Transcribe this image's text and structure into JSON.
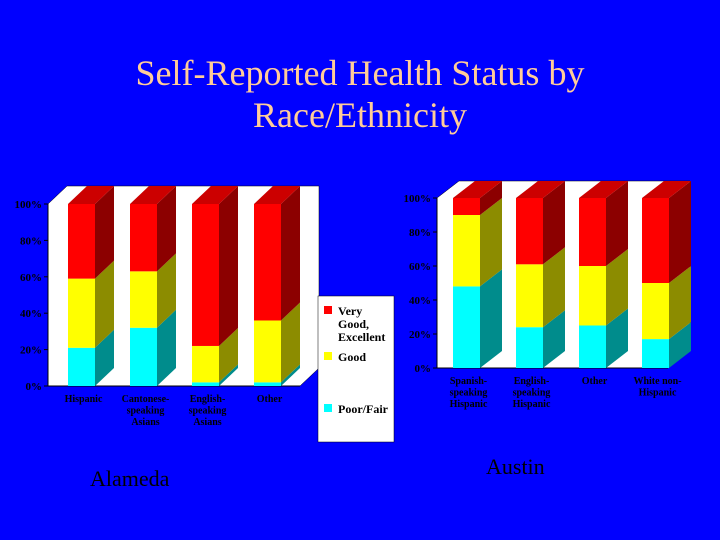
{
  "title_line1": "Self-Reported Health Status by",
  "title_line2": "Race/Ethnicity",
  "captions": {
    "left": "Alameda",
    "right": "Austin"
  },
  "colors": {
    "background": "#0000ff",
    "poor_fair": "#00ffff",
    "good": "#ffff00",
    "very_good_excellent": "#ff0000",
    "title": "#ffcc99",
    "plot_area": "#ffffff"
  },
  "chart_data": [
    {
      "type": "bar",
      "stacked": true,
      "three_d": true,
      "title": "Alameda",
      "categories": [
        [
          "Hispanic"
        ],
        [
          "Cantonese-",
          "speaking",
          "Asians"
        ],
        [
          "English-",
          "speaking",
          "Asians"
        ],
        [
          "Other"
        ]
      ],
      "series": [
        {
          "name": "Poor/Fair",
          "values": [
            21,
            32,
            2,
            2
          ]
        },
        {
          "name": "Good",
          "values": [
            38,
            31,
            20,
            34
          ]
        },
        {
          "name": "Very Good, Excellent",
          "values": [
            41,
            37,
            78,
            64
          ]
        }
      ],
      "ylim": [
        0,
        100
      ],
      "yticks": [
        "0%",
        "20%",
        "40%",
        "60%",
        "80%",
        "100%"
      ],
      "legend": {
        "placement": "right",
        "entries": [
          {
            "series": 2,
            "lines": [
              "Very",
              "Good,",
              "Excellent"
            ]
          },
          {
            "series": 1,
            "lines": [
              "Good"
            ]
          },
          {
            "series": 0,
            "lines": [
              "Poor/Fair"
            ]
          }
        ]
      }
    },
    {
      "type": "bar",
      "stacked": true,
      "three_d": true,
      "title": "Austin",
      "categories": [
        [
          "Spanish-",
          "speaking",
          "Hispanic"
        ],
        [
          "English-",
          "speaking",
          "Hispanic"
        ],
        [
          "Other"
        ],
        [
          "White non-",
          "Hispanic"
        ]
      ],
      "series": [
        {
          "name": "Poor/Fair",
          "values": [
            48,
            24,
            25,
            17
          ]
        },
        {
          "name": "Good",
          "values": [
            42,
            37,
            35,
            33
          ]
        },
        {
          "name": "Very Good, Excellent",
          "values": [
            10,
            39,
            40,
            50
          ]
        }
      ],
      "ylim": [
        0,
        100
      ],
      "yticks": [
        "0%",
        "20%",
        "40%",
        "60%",
        "80%",
        "100%"
      ]
    }
  ]
}
